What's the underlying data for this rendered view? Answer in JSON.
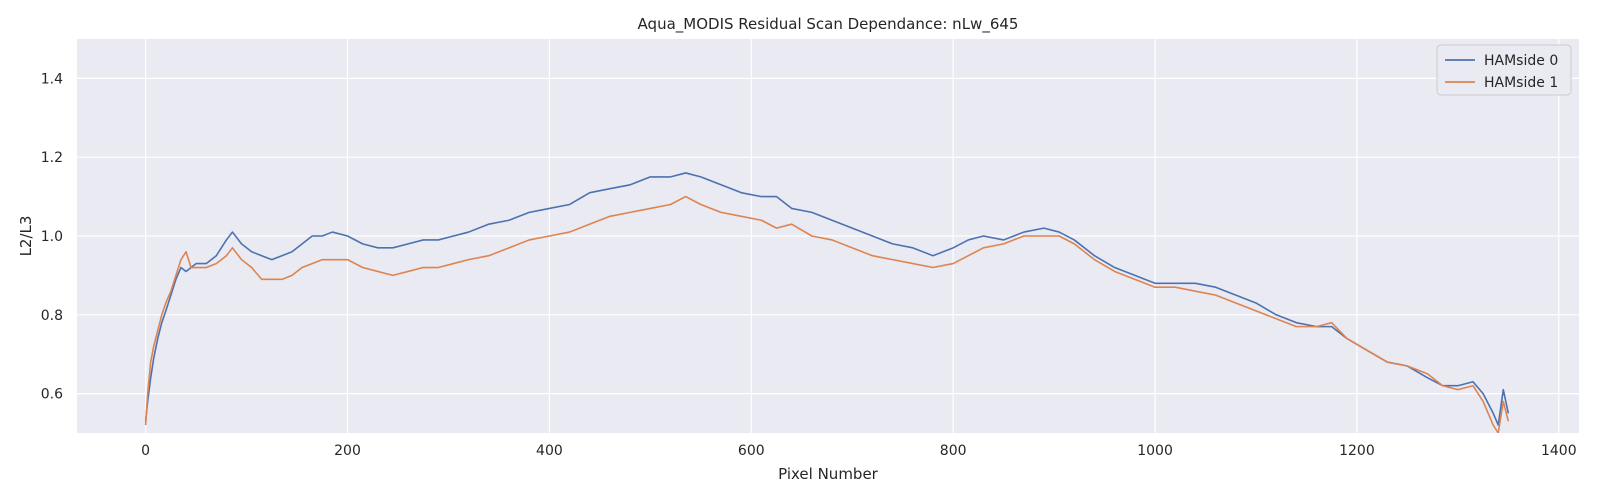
{
  "chart_data": {
    "type": "line",
    "title": "Aqua_MODIS Residual Scan Dependance: nLw_645",
    "xlabel": "Pixel Number",
    "ylabel": "L2/L3",
    "xlim": [
      -68,
      1420
    ],
    "ylim": [
      0.5,
      1.5
    ],
    "xticks": [
      0,
      200,
      400,
      600,
      800,
      1000,
      1200,
      1400
    ],
    "xtick_labels": [
      "0",
      "200",
      "400",
      "600",
      "800",
      "1000",
      "1200",
      "1400"
    ],
    "yticks": [
      0.6,
      0.8,
      1.0,
      1.2,
      1.4
    ],
    "ytick_labels": [
      "0.6",
      "0.8",
      "1.0",
      "1.2",
      "1.4"
    ],
    "grid": true,
    "legend_position": "top-right",
    "series": [
      {
        "name": "HAMside 0",
        "color": "#4c72b0",
        "x": [
          0,
          2,
          5,
          8,
          12,
          16,
          20,
          25,
          30,
          35,
          40,
          45,
          50,
          60,
          70,
          80,
          86,
          95,
          105,
          115,
          125,
          135,
          145,
          155,
          165,
          175,
          185,
          200,
          215,
          230,
          245,
          260,
          275,
          290,
          305,
          320,
          340,
          360,
          380,
          400,
          420,
          440,
          460,
          480,
          500,
          520,
          535,
          550,
          570,
          590,
          610,
          625,
          640,
          660,
          680,
          700,
          720,
          740,
          760,
          780,
          800,
          815,
          830,
          850,
          870,
          890,
          905,
          920,
          940,
          960,
          980,
          1000,
          1020,
          1040,
          1060,
          1080,
          1100,
          1120,
          1140,
          1160,
          1175,
          1190,
          1210,
          1230,
          1250,
          1270,
          1285,
          1300,
          1315,
          1325,
          1335,
          1340,
          1345,
          1350
        ],
        "y": [
          0.53,
          0.58,
          0.64,
          0.69,
          0.74,
          0.78,
          0.81,
          0.85,
          0.89,
          0.92,
          0.91,
          0.92,
          0.93,
          0.93,
          0.95,
          0.99,
          1.01,
          0.98,
          0.96,
          0.95,
          0.94,
          0.95,
          0.96,
          0.98,
          1.0,
          1.0,
          1.01,
          1.0,
          0.98,
          0.97,
          0.97,
          0.98,
          0.99,
          0.99,
          1.0,
          1.01,
          1.03,
          1.04,
          1.06,
          1.07,
          1.08,
          1.11,
          1.12,
          1.13,
          1.15,
          1.15,
          1.16,
          1.15,
          1.13,
          1.11,
          1.1,
          1.1,
          1.07,
          1.06,
          1.04,
          1.02,
          1.0,
          0.98,
          0.97,
          0.95,
          0.97,
          0.99,
          1.0,
          0.99,
          1.01,
          1.02,
          1.01,
          0.99,
          0.95,
          0.92,
          0.9,
          0.88,
          0.88,
          0.88,
          0.87,
          0.85,
          0.83,
          0.8,
          0.78,
          0.77,
          0.77,
          0.74,
          0.71,
          0.68,
          0.67,
          0.64,
          0.62,
          0.62,
          0.63,
          0.6,
          0.55,
          0.52,
          0.61,
          0.55
        ]
      },
      {
        "name": "HAMside 1",
        "color": "#dd8452",
        "x": [
          0,
          2,
          5,
          8,
          12,
          16,
          20,
          25,
          30,
          35,
          40,
          45,
          50,
          60,
          70,
          80,
          86,
          95,
          105,
          115,
          125,
          135,
          145,
          155,
          165,
          175,
          185,
          200,
          215,
          230,
          245,
          260,
          275,
          290,
          305,
          320,
          340,
          360,
          380,
          400,
          420,
          440,
          460,
          480,
          500,
          520,
          535,
          550,
          570,
          590,
          610,
          625,
          640,
          660,
          680,
          700,
          720,
          740,
          760,
          780,
          800,
          815,
          830,
          850,
          870,
          890,
          905,
          920,
          940,
          960,
          980,
          1000,
          1020,
          1040,
          1060,
          1080,
          1100,
          1120,
          1140,
          1160,
          1175,
          1190,
          1210,
          1230,
          1250,
          1270,
          1285,
          1300,
          1315,
          1325,
          1335,
          1340,
          1345,
          1350
        ],
        "y": [
          0.52,
          0.6,
          0.68,
          0.72,
          0.76,
          0.8,
          0.83,
          0.86,
          0.9,
          0.94,
          0.96,
          0.92,
          0.92,
          0.92,
          0.93,
          0.95,
          0.97,
          0.94,
          0.92,
          0.89,
          0.89,
          0.89,
          0.9,
          0.92,
          0.93,
          0.94,
          0.94,
          0.94,
          0.92,
          0.91,
          0.9,
          0.91,
          0.92,
          0.92,
          0.93,
          0.94,
          0.95,
          0.97,
          0.99,
          1.0,
          1.01,
          1.03,
          1.05,
          1.06,
          1.07,
          1.08,
          1.1,
          1.08,
          1.06,
          1.05,
          1.04,
          1.02,
          1.03,
          1.0,
          0.99,
          0.97,
          0.95,
          0.94,
          0.93,
          0.92,
          0.93,
          0.95,
          0.97,
          0.98,
          1.0,
          1.0,
          1.0,
          0.98,
          0.94,
          0.91,
          0.89,
          0.87,
          0.87,
          0.86,
          0.85,
          0.83,
          0.81,
          0.79,
          0.77,
          0.77,
          0.78,
          0.74,
          0.71,
          0.68,
          0.67,
          0.65,
          0.62,
          0.61,
          0.62,
          0.58,
          0.52,
          0.5,
          0.58,
          0.53
        ]
      }
    ]
  }
}
